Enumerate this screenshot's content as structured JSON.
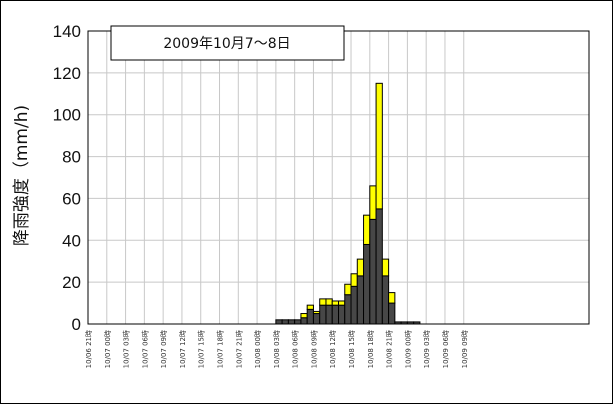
{
  "chart_data": {
    "type": "bar",
    "stacked": true,
    "title": "2009年10月7～8日",
    "ylabel": "降雨強度（mm/h)",
    "xlabel": "",
    "ylim": [
      0,
      140
    ],
    "yticks": [
      0,
      20,
      40,
      60,
      80,
      100,
      120,
      140
    ],
    "grid": true,
    "xtick_labels": [
      "10/06 21時",
      "10/07 00時",
      "10/07 03時",
      "10/07 06時",
      "10/07 09時",
      "10/07 12時",
      "10/07 15時",
      "10/07 18時",
      "10/07 21時",
      "10/08 00時",
      "10/08 03時",
      "10/08 06時",
      "10/08 09時",
      "10/08 12時",
      "10/08 15時",
      "10/08 18時",
      "10/08 21時",
      "10/09 00時",
      "10/09 03時",
      "10/09 06時",
      "10/09 09時"
    ],
    "hours_per_tick": 3,
    "series": [
      {
        "color": "#474747",
        "values": [
          0,
          0,
          0,
          0,
          0,
          0,
          0,
          0,
          0,
          0,
          0,
          0,
          0,
          0,
          0,
          0,
          0,
          0,
          0,
          0,
          0,
          0,
          0,
          0,
          0,
          0,
          0,
          0,
          0,
          0,
          2,
          2,
          2,
          2,
          3,
          7,
          5,
          9,
          9,
          9,
          9,
          14,
          18,
          23,
          38,
          50,
          55,
          23,
          10,
          1,
          1,
          1,
          1,
          0,
          0,
          0,
          0,
          0,
          0,
          0,
          0,
          0,
          0,
          0,
          0,
          0,
          0,
          0,
          0,
          0,
          0,
          0,
          0,
          0,
          0,
          0,
          0,
          0,
          0,
          0
        ]
      },
      {
        "color": "#ffff00",
        "values": [
          0,
          0,
          0,
          0,
          0,
          0,
          0,
          0,
          0,
          0,
          0,
          0,
          0,
          0,
          0,
          0,
          0,
          0,
          0,
          0,
          0,
          0,
          0,
          0,
          0,
          0,
          0,
          0,
          0,
          0,
          0,
          0,
          0,
          0,
          2,
          2,
          1,
          3,
          3,
          2,
          2,
          5,
          6,
          8,
          14,
          16,
          60,
          8,
          5,
          0,
          0,
          0,
          0,
          0,
          0,
          0,
          0,
          0,
          0,
          0,
          0,
          0,
          0,
          0,
          0,
          0,
          0,
          0,
          0,
          0,
          0,
          0,
          0,
          0,
          0,
          0,
          0,
          0,
          0,
          0
        ]
      }
    ]
  }
}
